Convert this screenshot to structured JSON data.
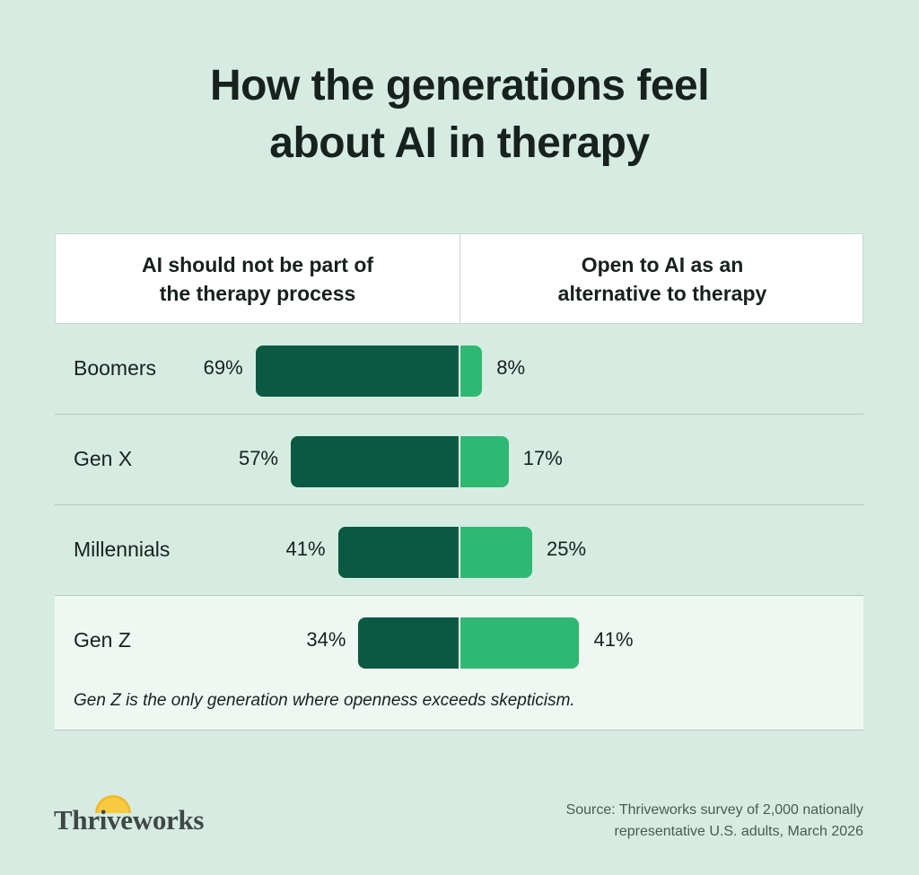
{
  "title_lines": [
    "How the generations feel",
    "about AI in therapy"
  ],
  "headers": {
    "left_lines": [
      "AI should not be part of",
      "the therapy process"
    ],
    "right_lines": [
      "Open to AI as an",
      "alternative to therapy"
    ]
  },
  "rows": [
    {
      "label": "Boomers",
      "left_text": "69%",
      "right_text": "8%"
    },
    {
      "label": "Gen X",
      "left_text": "57%",
      "right_text": "17%"
    },
    {
      "label": "Millennials",
      "left_text": "41%",
      "right_text": "25%"
    },
    {
      "label": "Gen Z",
      "left_text": "34%",
      "right_text": "41%"
    }
  ],
  "note": "Gen Z is the only generation where openness exceeds skepticism.",
  "logo": "Thriveworks",
  "source_lines": [
    "Source: Thriveworks survey of 2,000 nationally",
    "representative U.S. adults, March 2026"
  ],
  "colors": {
    "background": "#d6ece2",
    "negative_bar": "#0a5a43",
    "positive_bar": "#2fb872",
    "highlight_row": "#eff7f3"
  },
  "chart_data": {
    "type": "bar",
    "orientation": "horizontal-diverging",
    "categories": [
      "Boomers",
      "Gen X",
      "Millennials",
      "Gen Z"
    ],
    "series": [
      {
        "name": "AI should not be part of the therapy process",
        "values": [
          69,
          57,
          41,
          34
        ],
        "color": "#0a5a43"
      },
      {
        "name": "Open to AI as an alternative to therapy",
        "values": [
          8,
          17,
          25,
          41
        ],
        "color": "#2fb872"
      }
    ],
    "units": "%",
    "highlighted_category": "Gen Z",
    "grid": false
  }
}
